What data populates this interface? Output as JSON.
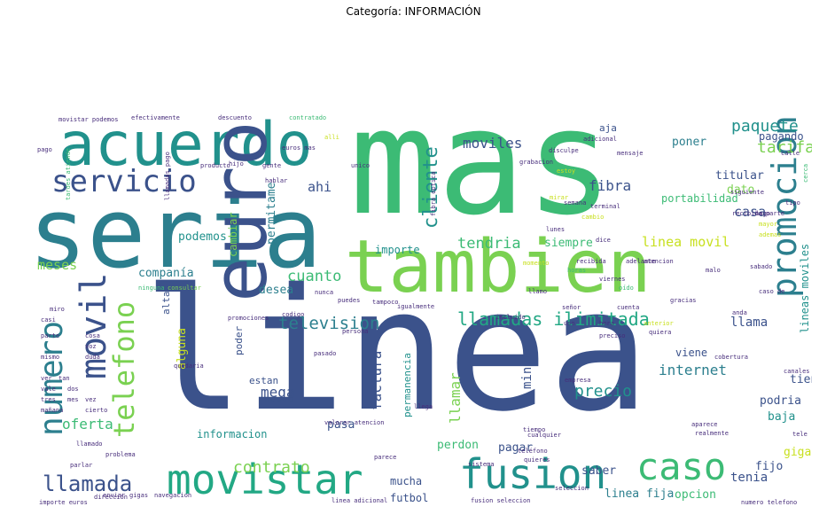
{
  "title": "Categoría: INFORMACIÓN",
  "palette": {
    "dark": "#3b528b",
    "teal": "#2c7f8e",
    "cyan": "#21918c",
    "green": "#3cbb75",
    "lime": "#7ad151",
    "yellow": "#c8e020",
    "purple": "#472d7b"
  },
  "words": [
    {
      "text": "linea",
      "color": "#3b528b"
    },
    {
      "text": "mas",
      "color": "#3cbb75"
    },
    {
      "text": "seria",
      "color": "#2c7f8e"
    },
    {
      "text": "tambien",
      "color": "#7ad151"
    },
    {
      "text": "acuerdo",
      "color": "#21918c"
    },
    {
      "text": "euro",
      "color": "#3b528b"
    },
    {
      "text": "promocion",
      "color": "#2c7f8e"
    },
    {
      "text": "movistar",
      "color": "#22a884"
    },
    {
      "text": "fusion",
      "color": "#21918c"
    },
    {
      "text": "caso",
      "color": "#3cbb75"
    },
    {
      "text": "servicio",
      "color": "#3b528b"
    },
    {
      "text": "numero",
      "color": "#2c7f8e"
    },
    {
      "text": "movil",
      "color": "#3b528b"
    },
    {
      "text": "telefono",
      "color": "#7ad151"
    },
    {
      "text": "llamada",
      "color": "#3b528b"
    },
    {
      "text": "llamadas ilimitada",
      "color": "#22a884"
    },
    {
      "text": "television",
      "color": "#2c7f8e"
    },
    {
      "text": "paquete",
      "color": "#21918c"
    },
    {
      "text": "tarifa",
      "color": "#7ad151"
    },
    {
      "text": "moviles",
      "color": "#3b528b"
    },
    {
      "text": "cliente",
      "color": "#21918c"
    },
    {
      "text": "fibra",
      "color": "#3b528b"
    },
    {
      "text": "linea movil",
      "color": "#c8e020"
    },
    {
      "text": "tendria",
      "color": "#3cbb75"
    },
    {
      "text": "casa",
      "color": "#3b528b"
    },
    {
      "text": "contrato",
      "color": "#7ad151"
    },
    {
      "text": "internet",
      "color": "#2c7f8e"
    },
    {
      "text": "precio",
      "color": "#21918c"
    },
    {
      "text": "factura",
      "color": "#3b528b"
    },
    {
      "text": "oferta",
      "color": "#3cbb75"
    },
    {
      "text": "mega",
      "color": "#3b528b"
    },
    {
      "text": "cuanto",
      "color": "#3cbb75"
    },
    {
      "text": "ahi",
      "color": "#3b528b"
    },
    {
      "text": "meses",
      "color": "#7ad151"
    },
    {
      "text": "companía",
      "color": "#2c7f8e"
    },
    {
      "text": "podemos",
      "color": "#21918c"
    },
    {
      "text": "cambiar",
      "color": "#7ad151"
    },
    {
      "text": "permitame",
      "color": "#2c7f8e"
    },
    {
      "text": "alguna",
      "color": "#c8e020"
    },
    {
      "text": "llamar",
      "color": "#7ad151"
    },
    {
      "text": "minuto",
      "color": "#3b528b"
    },
    {
      "text": "llama",
      "color": "#3b528b"
    },
    {
      "text": "tienda",
      "color": "#3b528b"
    },
    {
      "text": "podria",
      "color": "#3b528b"
    },
    {
      "text": "baja",
      "color": "#21918c"
    },
    {
      "text": "giga",
      "color": "#c8e020"
    },
    {
      "text": "fijo",
      "color": "#3b528b"
    },
    {
      "text": "tenia",
      "color": "#3b528b"
    },
    {
      "text": "opcion",
      "color": "#3cbb75"
    },
    {
      "text": "linea fija",
      "color": "#2c7f8e"
    },
    {
      "text": "futbol",
      "color": "#3b528b"
    },
    {
      "text": "mucha",
      "color": "#3b528b"
    },
    {
      "text": "saber",
      "color": "#3b528b"
    },
    {
      "text": "pagar",
      "color": "#3b528b"
    },
    {
      "text": "perdon",
      "color": "#3cbb75"
    },
    {
      "text": "pasa",
      "color": "#3b528b"
    },
    {
      "text": "desea",
      "color": "#2c7f8e"
    },
    {
      "text": "dato",
      "color": "#7ad151"
    },
    {
      "text": "titular",
      "color": "#3b528b"
    },
    {
      "text": "poner",
      "color": "#2c7f8e"
    },
    {
      "text": "pagando",
      "color": "#3b528b"
    },
    {
      "text": "siempre",
      "color": "#3cbb75"
    },
    {
      "text": "importe",
      "color": "#21918c"
    },
    {
      "text": "portabilidad",
      "color": "#3cbb75"
    },
    {
      "text": "lineas moviles",
      "color": "#21918c"
    },
    {
      "text": "informacion",
      "color": "#21918c"
    },
    {
      "text": "viene",
      "color": "#3b528b"
    },
    {
      "text": "estan",
      "color": "#3b528b"
    },
    {
      "text": "nuevo",
      "color": "#3b528b"
    },
    {
      "text": "poder",
      "color": "#3b528b"
    },
    {
      "text": "permanencia",
      "color": "#21918c"
    },
    {
      "text": "alta",
      "color": "#3b528b"
    },
    {
      "text": "aja",
      "color": "#3b528b"
    },
    {
      "text": "movistar podemos",
      "color": "#472d7b"
    },
    {
      "text": "efectivamente",
      "color": "#472d7b"
    },
    {
      "text": "descuento",
      "color": "#472d7b"
    },
    {
      "text": "contratado",
      "color": "#3cbb75"
    },
    {
      "text": "dirección",
      "color": "#472d7b"
    },
    {
      "text": "importe euros",
      "color": "#472d7b"
    },
    {
      "text": "numero telefono",
      "color": "#472d7b"
    },
    {
      "text": "fusion seleccion",
      "color": "#472d7b"
    },
    {
      "text": "linea adicional",
      "color": "#472d7b"
    },
    {
      "text": "problema",
      "color": "#472d7b"
    },
    {
      "text": "llamado",
      "color": "#472d7b"
    },
    {
      "text": "parlar",
      "color": "#472d7b"
    },
    {
      "text": "terminal",
      "color": "#472d7b"
    },
    {
      "text": "adicional",
      "color": "#472d7b"
    },
    {
      "text": "grabacion",
      "color": "#472d7b"
    },
    {
      "text": "disculpe",
      "color": "#472d7b"
    },
    {
      "text": "mensaje",
      "color": "#472d7b"
    },
    {
      "text": "siguiente",
      "color": "#472d7b"
    },
    {
      "text": "recibida parte",
      "color": "#472d7b"
    },
    {
      "text": "canales",
      "color": "#472d7b"
    },
    {
      "text": "aparece",
      "color": "#472d7b"
    },
    {
      "text": "realmente",
      "color": "#472d7b"
    },
    {
      "text": "igualmente",
      "color": "#472d7b"
    },
    {
      "text": "promociones",
      "color": "#472d7b"
    },
    {
      "text": "pasado",
      "color": "#472d7b"
    },
    {
      "text": "codigo",
      "color": "#472d7b"
    },
    {
      "text": "valorar atencion",
      "color": "#472d7b"
    },
    {
      "text": "calle",
      "color": "#472d7b"
    },
    {
      "text": "incluido",
      "color": "#472d7b"
    },
    {
      "text": "cualquier",
      "color": "#472d7b"
    },
    {
      "text": "empresa",
      "color": "#472d7b"
    },
    {
      "text": "nunca",
      "color": "#472d7b"
    },
    {
      "text": "tampoco",
      "color": "#472d7b"
    },
    {
      "text": "dice",
      "color": "#472d7b"
    },
    {
      "text": "hago",
      "color": "#472d7b"
    },
    {
      "text": "euros mas",
      "color": "#472d7b"
    },
    {
      "text": "unico",
      "color": "#472d7b"
    },
    {
      "text": "puedes",
      "color": "#472d7b"
    },
    {
      "text": "hablar",
      "color": "#472d7b"
    },
    {
      "text": "producto",
      "color": "#472d7b"
    },
    {
      "text": "hijo",
      "color": "#472d7b"
    },
    {
      "text": "pago",
      "color": "#472d7b"
    },
    {
      "text": "parece",
      "color": "#472d7b"
    },
    {
      "text": "llega",
      "color": "#472d7b"
    },
    {
      "text": "sistema",
      "color": "#472d7b"
    },
    {
      "text": "quieres",
      "color": "#472d7b"
    },
    {
      "text": "tele",
      "color": "#472d7b"
    },
    {
      "text": "gente",
      "color": "#472d7b"
    },
    {
      "text": "persona",
      "color": "#472d7b"
    },
    {
      "text": "semana",
      "color": "#472d7b"
    },
    {
      "text": "cerca",
      "color": "#3cbb75"
    },
    {
      "text": "estoy",
      "color": "#c8e020"
    },
    {
      "text": "consultar",
      "color": "#7ad151"
    },
    {
      "text": "mirar",
      "color": "#c8e020"
    },
    {
      "text": "quedaria",
      "color": "#472d7b"
    },
    {
      "text": "momento",
      "color": "#c8e020"
    },
    {
      "text": "navegacion",
      "color": "#472d7b"
    },
    {
      "text": "ninguna",
      "color": "#3cbb75"
    },
    {
      "text": "gigas",
      "color": "#472d7b"
    },
    {
      "text": "tardes atiende",
      "color": "#3cbb75"
    },
    {
      "text": "llamadas pago",
      "color": "#472d7b"
    },
    {
      "text": "cobertura",
      "color": "#472d7b"
    },
    {
      "text": "enviar",
      "color": "#472d7b"
    },
    {
      "text": "quiera",
      "color": "#472d7b"
    },
    {
      "text": "anda",
      "color": "#472d7b"
    },
    {
      "text": "fibra optica",
      "color": "#472d7b"
    },
    {
      "text": "cambio",
      "color": "#c8e020"
    },
    {
      "text": "teléfono",
      "color": "#472d7b"
    },
    {
      "text": "mayor",
      "color": "#c8e020"
    },
    {
      "text": "seleccion",
      "color": "#472d7b"
    },
    {
      "text": "ademas",
      "color": "#c8e020"
    },
    {
      "text": "horas",
      "color": "#3cbb75"
    },
    {
      "text": "llamo",
      "color": "#472d7b"
    },
    {
      "text": "oído",
      "color": "#3cbb75"
    },
    {
      "text": "tiempo",
      "color": "#472d7b"
    },
    {
      "text": "recibida",
      "color": "#472d7b"
    },
    {
      "text": "adelante",
      "color": "#472d7b"
    },
    {
      "text": "cuenta",
      "color": "#472d7b"
    },
    {
      "text": "gracias",
      "color": "#472d7b"
    },
    {
      "text": "anterior",
      "color": "#c8e020"
    },
    {
      "text": "atencion",
      "color": "#472d7b"
    },
    {
      "text": "señor",
      "color": "#472d7b"
    },
    {
      "text": "preciso",
      "color": "#472d7b"
    },
    {
      "text": "caso de",
      "color": "#472d7b"
    },
    {
      "text": "tipo",
      "color": "#472d7b"
    },
    {
      "text": "sabado",
      "color": "#472d7b"
    },
    {
      "text": "uso",
      "color": "#472d7b"
    },
    {
      "text": "hora",
      "color": "#472d7b"
    },
    {
      "text": "malo",
      "color": "#472d7b"
    },
    {
      "text": "viernes",
      "color": "#472d7b"
    },
    {
      "text": "lunes",
      "color": "#472d7b"
    },
    {
      "text": "alli",
      "color": "#c8e020"
    },
    {
      "text": "miro",
      "color": "#472d7b"
    },
    {
      "text": "casi",
      "color": "#472d7b"
    },
    {
      "text": "parte",
      "color": "#472d7b"
    },
    {
      "text": "cosa",
      "color": "#472d7b"
    },
    {
      "text": "voz",
      "color": "#472d7b"
    },
    {
      "text": "mismo",
      "color": "#472d7b"
    },
    {
      "text": "duda",
      "color": "#472d7b"
    },
    {
      "text": "ver",
      "color": "#472d7b"
    },
    {
      "text": "tan",
      "color": "#472d7b"
    },
    {
      "text": "vale",
      "color": "#472d7b"
    },
    {
      "text": "dos",
      "color": "#472d7b"
    },
    {
      "text": "tres",
      "color": "#472d7b"
    },
    {
      "text": "mes",
      "color": "#472d7b"
    },
    {
      "text": "mañana",
      "color": "#472d7b"
    },
    {
      "text": "cierto",
      "color": "#472d7b"
    },
    {
      "text": "vez",
      "color": "#472d7b"
    }
  ]
}
